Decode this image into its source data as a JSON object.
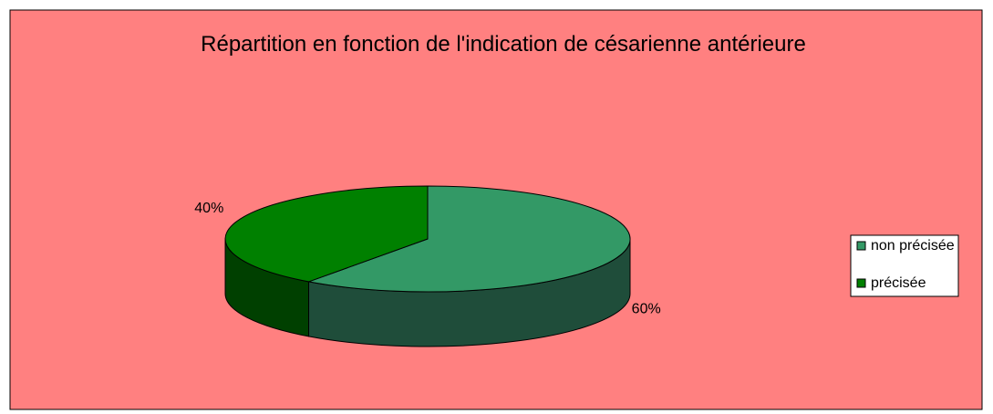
{
  "chart_data": {
    "type": "pie",
    "title": "Répartition en fonction de l'indication de césarienne antérieure",
    "categories": [
      "non précisée",
      "précisée"
    ],
    "values": [
      60,
      40
    ],
    "value_labels": [
      "60%",
      "40%"
    ],
    "colors": [
      "#339966",
      "#008000"
    ],
    "side_colors": [
      "#1f4d3a",
      "#004000"
    ],
    "background": "#ff8080",
    "legend": "right"
  }
}
